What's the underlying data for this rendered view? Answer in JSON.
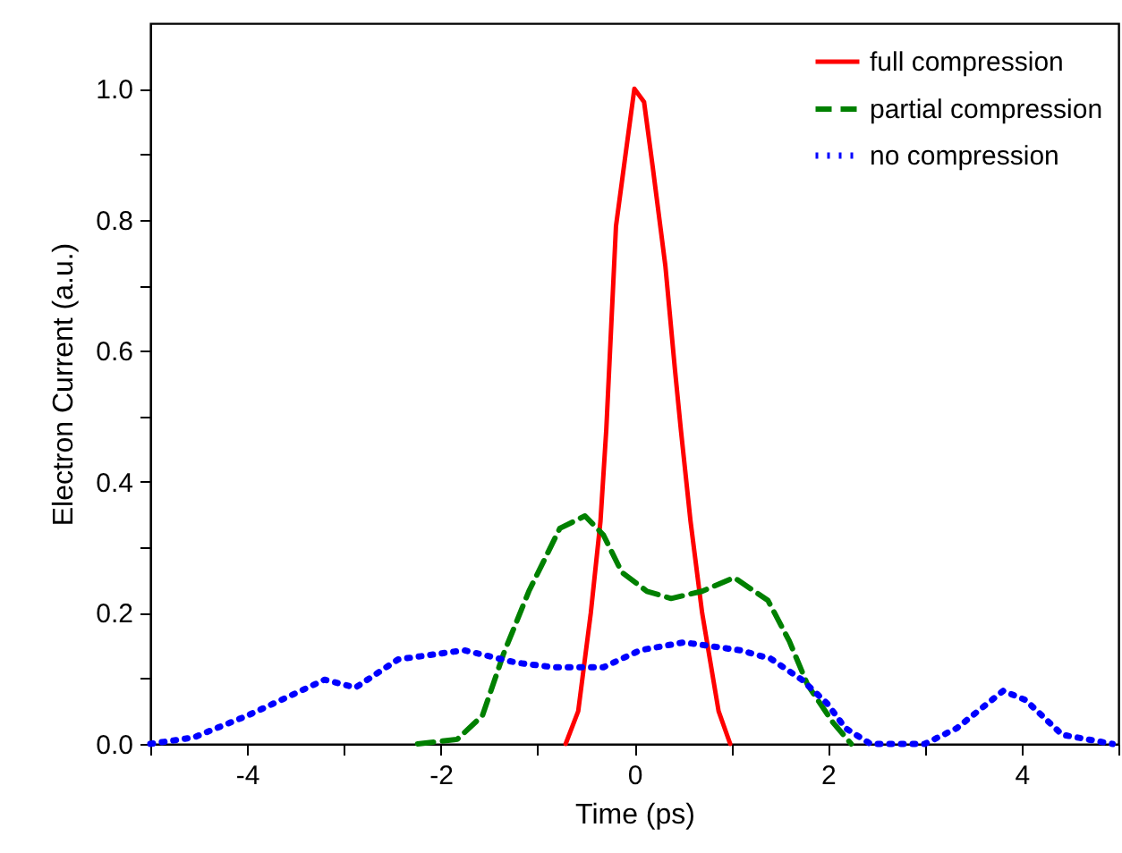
{
  "chart_data": {
    "type": "line",
    "xlabel": "Time (ps)",
    "ylabel": "Electron Current (a.u.)",
    "xlim": [
      -5,
      5
    ],
    "ylim": [
      0,
      1.1
    ],
    "xticks": [
      {
        "value": -5,
        "label": null
      },
      -4,
      {
        "value": -3,
        "label": null
      },
      -2,
      {
        "value": -1,
        "label": null
      },
      0,
      {
        "value": 1,
        "label": null
      },
      2,
      {
        "value": 3,
        "label": null
      },
      4,
      {
        "value": 5,
        "label": null
      }
    ],
    "yticks": [
      {
        "value": 0,
        "label": "0.0"
      },
      {
        "value": 0.1,
        "label": null
      },
      0.2,
      {
        "value": 0.3,
        "label": null
      },
      0.4,
      {
        "value": 0.5,
        "label": null
      },
      0.6,
      {
        "value": 0.7,
        "label": null
      },
      0.8,
      {
        "value": 0.9,
        "label": null
      },
      {
        "value": 1,
        "label": "1.0"
      }
    ],
    "grid": false,
    "legend": "top right",
    "marker": "none",
    "series": [
      {
        "name": "full compression",
        "color": "#ff0000",
        "line_style": "solid",
        "x": [
          -0.71,
          -0.58,
          -0.45,
          -0.35,
          -0.29,
          -0.19,
          -0.1,
          0,
          0.1,
          0.19,
          0.32,
          0.42,
          0.48,
          0.58,
          0.7,
          0.87,
          0.99
        ],
        "values": [
          0,
          0.05,
          0.2,
          0.34,
          0.48,
          0.79,
          0.89,
          1.0,
          0.98,
          0.88,
          0.73,
          0.57,
          0.48,
          0.34,
          0.2,
          0.05,
          0
        ]
      },
      {
        "name": "partial compression",
        "color": "#008000",
        "line_style": "dashed",
        "x": [
          -2.24,
          -1.83,
          -1.57,
          -1.35,
          -1.09,
          -0.77,
          -0.51,
          -0.32,
          -0.13,
          0.13,
          0.38,
          0.7,
          1.03,
          1.38,
          1.6,
          1.79,
          2.05,
          2.24
        ],
        "values": [
          0,
          0.007,
          0.043,
          0.138,
          0.233,
          0.329,
          0.348,
          0.319,
          0.262,
          0.233,
          0.222,
          0.233,
          0.254,
          0.219,
          0.157,
          0.09,
          0.033,
          0
        ]
      },
      {
        "name": "no compression",
        "color": "#0000ff",
        "line_style": "dotted",
        "x": [
          -5,
          -4.55,
          -4,
          -3.65,
          -3.2,
          -2.88,
          -2.44,
          -1.76,
          -1.22,
          -0.83,
          -0.32,
          0.06,
          0.51,
          1.09,
          1.41,
          1.73,
          1.99,
          2.18,
          2.44,
          3.0,
          3.33,
          3.81,
          4.04,
          4.42,
          4.94
        ],
        "values": [
          0,
          0.01,
          0.043,
          0.067,
          0.098,
          0.086,
          0.129,
          0.143,
          0.124,
          0.117,
          0.117,
          0.143,
          0.155,
          0.143,
          0.13,
          0.098,
          0.062,
          0.024,
          0,
          0,
          0.024,
          0.081,
          0.067,
          0.014,
          0
        ]
      }
    ]
  }
}
